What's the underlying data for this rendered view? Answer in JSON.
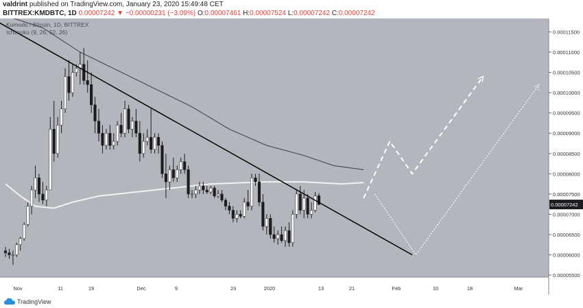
{
  "header": {
    "author": "valdrint",
    "published": "published on TradingView.com, January 23, 2020 15:49:48 CET",
    "symbol": "BITTREX:KMDBTC, 1D",
    "last": "0.00007242",
    "change": "▼ −0.00000231 (−3.09%)",
    "o_label": "O:",
    "o": "0.00007461",
    "h_label": "H:",
    "h": "0.00007524",
    "l_label": "L:",
    "l": "0.00007242",
    "c_label": "C:",
    "c": "0.00007242"
  },
  "legend": {
    "title": "Komodo / Bitcoin, 1D, BITTREX",
    "indicator": "Ichimoku (9, 26, 52, 26)"
  },
  "footer": {
    "brand": "TradingView"
  },
  "colors": {
    "plot_bg": "#b4b6bd",
    "bull": "#ffffff",
    "bear": "#1c1c20",
    "price_badge": "#1c1c20",
    "trend_line": "#000000",
    "ma_dark": "#3a3a40",
    "ma_light": "#f2f2f2",
    "projection": "#ffffff"
  },
  "chart_data": {
    "type": "candlestick",
    "x_ticks": [
      "Nov",
      "11",
      "19",
      "Dec",
      "9",
      "23",
      "2020",
      "13",
      "21",
      "Feb",
      "10",
      "18",
      "Mar"
    ],
    "y_ticks": [
      "0.00011500",
      "0.00011000",
      "0.00010500",
      "0.00010000",
      "0.00009500",
      "0.00009000",
      "0.00008500",
      "0.00008000",
      "0.00007500",
      "0.00007000",
      "0.00006500",
      "0.00006000",
      "0.00005500"
    ],
    "ylim": [
      5.45e-05,
      0.0001183
    ],
    "current_price": "0.00007242",
    "candles": [
      {
        "o": 6.1,
        "h": 6.2,
        "l": 5.95,
        "c": 6.05
      },
      {
        "o": 6.05,
        "h": 6.15,
        "l": 5.9,
        "c": 6.0
      },
      {
        "o": 6.0,
        "h": 6.1,
        "l": 5.75,
        "c": 6.0
      },
      {
        "o": 6.0,
        "h": 6.3,
        "l": 5.95,
        "c": 6.25
      },
      {
        "o": 6.25,
        "h": 6.45,
        "l": 6.1,
        "c": 6.4
      },
      {
        "o": 6.4,
        "h": 6.8,
        "l": 6.35,
        "c": 6.75
      },
      {
        "o": 6.75,
        "h": 7.3,
        "l": 6.7,
        "c": 7.2
      },
      {
        "o": 7.2,
        "h": 7.7,
        "l": 7.0,
        "c": 7.6
      },
      {
        "o": 7.6,
        "h": 8.2,
        "l": 7.4,
        "c": 7.9
      },
      {
        "o": 7.9,
        "h": 8.0,
        "l": 7.3,
        "c": 7.5
      },
      {
        "o": 7.5,
        "h": 7.8,
        "l": 7.25,
        "c": 7.35
      },
      {
        "o": 7.35,
        "h": 7.7,
        "l": 7.2,
        "c": 7.6
      },
      {
        "o": 7.6,
        "h": 9.4,
        "l": 7.6,
        "c": 9.1
      },
      {
        "o": 9.1,
        "h": 9.8,
        "l": 8.3,
        "c": 8.5
      },
      {
        "o": 8.5,
        "h": 9.4,
        "l": 8.4,
        "c": 9.2
      },
      {
        "o": 9.2,
        "h": 9.8,
        "l": 9.0,
        "c": 9.6
      },
      {
        "o": 9.6,
        "h": 10.6,
        "l": 9.5,
        "c": 10.4
      },
      {
        "o": 10.4,
        "h": 10.8,
        "l": 9.8,
        "c": 10.0
      },
      {
        "o": 10.0,
        "h": 10.7,
        "l": 9.9,
        "c": 10.5
      },
      {
        "o": 10.5,
        "h": 10.7,
        "l": 10.4,
        "c": 10.6
      },
      {
        "o": 10.6,
        "h": 11.0,
        "l": 10.2,
        "c": 10.7
      },
      {
        "o": 10.7,
        "h": 11.1,
        "l": 10.2,
        "c": 10.3
      },
      {
        "o": 10.3,
        "h": 10.8,
        "l": 10.0,
        "c": 10.2
      },
      {
        "o": 10.2,
        "h": 10.5,
        "l": 9.5,
        "c": 9.7
      },
      {
        "o": 9.7,
        "h": 9.9,
        "l": 9.0,
        "c": 9.3
      },
      {
        "o": 9.3,
        "h": 9.6,
        "l": 8.8,
        "c": 9.0
      },
      {
        "o": 9.0,
        "h": 9.2,
        "l": 8.5,
        "c": 8.7
      },
      {
        "o": 8.7,
        "h": 9.1,
        "l": 8.6,
        "c": 9.0
      },
      {
        "o": 9.0,
        "h": 9.2,
        "l": 8.6,
        "c": 8.7
      },
      {
        "o": 8.7,
        "h": 9.0,
        "l": 8.6,
        "c": 8.8
      },
      {
        "o": 8.8,
        "h": 9.3,
        "l": 8.7,
        "c": 9.2
      },
      {
        "o": 9.2,
        "h": 9.5,
        "l": 8.9,
        "c": 9.0
      },
      {
        "o": 9.0,
        "h": 9.8,
        "l": 8.9,
        "c": 9.6
      },
      {
        "o": 9.6,
        "h": 9.7,
        "l": 9.0,
        "c": 9.1
      },
      {
        "o": 9.1,
        "h": 9.4,
        "l": 8.9,
        "c": 9.3
      },
      {
        "o": 9.3,
        "h": 9.6,
        "l": 8.9,
        "c": 9.0
      },
      {
        "o": 9.0,
        "h": 9.3,
        "l": 8.3,
        "c": 8.5
      },
      {
        "o": 8.5,
        "h": 9.0,
        "l": 8.4,
        "c": 8.8
      },
      {
        "o": 8.8,
        "h": 9.1,
        "l": 8.7,
        "c": 8.9
      },
      {
        "o": 8.9,
        "h": 9.6,
        "l": 8.5,
        "c": 8.6
      },
      {
        "o": 8.6,
        "h": 9.0,
        "l": 8.5,
        "c": 8.9
      },
      {
        "o": 8.9,
        "h": 9.0,
        "l": 8.5,
        "c": 8.7
      },
      {
        "o": 8.7,
        "h": 8.8,
        "l": 7.9,
        "c": 8.0
      },
      {
        "o": 8.0,
        "h": 8.5,
        "l": 7.4,
        "c": 7.8
      },
      {
        "o": 7.8,
        "h": 8.2,
        "l": 7.6,
        "c": 8.1
      },
      {
        "o": 8.1,
        "h": 8.4,
        "l": 7.8,
        "c": 7.9
      },
      {
        "o": 7.9,
        "h": 8.2,
        "l": 7.8,
        "c": 8.1
      },
      {
        "o": 8.1,
        "h": 8.4,
        "l": 8.0,
        "c": 8.3
      },
      {
        "o": 8.3,
        "h": 8.5,
        "l": 8.0,
        "c": 8.1
      },
      {
        "o": 8.1,
        "h": 8.2,
        "l": 7.4,
        "c": 7.5
      },
      {
        "o": 7.5,
        "h": 7.6,
        "l": 7.4,
        "c": 7.5
      },
      {
        "o": 7.5,
        "h": 7.7,
        "l": 7.4,
        "c": 7.6
      },
      {
        "o": 7.6,
        "h": 7.8,
        "l": 7.5,
        "c": 7.7
      },
      {
        "o": 7.7,
        "h": 7.8,
        "l": 7.5,
        "c": 7.6
      },
      {
        "o": 7.6,
        "h": 7.7,
        "l": 7.5,
        "c": 7.55
      },
      {
        "o": 7.55,
        "h": 7.7,
        "l": 7.5,
        "c": 7.65
      },
      {
        "o": 7.65,
        "h": 7.7,
        "l": 7.4,
        "c": 7.45
      },
      {
        "o": 7.45,
        "h": 7.6,
        "l": 7.4,
        "c": 7.5
      },
      {
        "o": 7.5,
        "h": 7.6,
        "l": 7.3,
        "c": 7.35
      },
      {
        "o": 7.35,
        "h": 7.4,
        "l": 7.1,
        "c": 7.2
      },
      {
        "o": 7.2,
        "h": 7.3,
        "l": 7.0,
        "c": 7.1
      },
      {
        "o": 7.1,
        "h": 7.2,
        "l": 6.8,
        "c": 6.9
      },
      {
        "o": 6.9,
        "h": 7.1,
        "l": 6.8,
        "c": 7.0
      },
      {
        "o": 7.0,
        "h": 7.1,
        "l": 6.9,
        "c": 6.95
      },
      {
        "o": 6.95,
        "h": 7.4,
        "l": 6.9,
        "c": 7.3
      },
      {
        "o": 7.3,
        "h": 7.6,
        "l": 7.1,
        "c": 7.2
      },
      {
        "o": 7.2,
        "h": 8.0,
        "l": 7.1,
        "c": 7.9
      },
      {
        "o": 7.9,
        "h": 8.0,
        "l": 7.7,
        "c": 7.8
      },
      {
        "o": 7.8,
        "h": 8.0,
        "l": 7.2,
        "c": 7.3
      },
      {
        "o": 7.3,
        "h": 7.5,
        "l": 6.6,
        "c": 6.7
      },
      {
        "o": 6.7,
        "h": 7.0,
        "l": 6.5,
        "c": 6.9
      },
      {
        "o": 6.9,
        "h": 7.0,
        "l": 6.4,
        "c": 6.5
      },
      {
        "o": 6.5,
        "h": 6.7,
        "l": 6.3,
        "c": 6.4
      },
      {
        "o": 6.4,
        "h": 6.6,
        "l": 6.25,
        "c": 6.5
      },
      {
        "o": 6.5,
        "h": 6.7,
        "l": 6.3,
        "c": 6.35
      },
      {
        "o": 6.35,
        "h": 6.7,
        "l": 6.2,
        "c": 6.6
      },
      {
        "o": 6.6,
        "h": 6.8,
        "l": 6.2,
        "c": 6.3
      },
      {
        "o": 6.3,
        "h": 7.1,
        "l": 6.2,
        "c": 7.0
      },
      {
        "o": 7.0,
        "h": 7.6,
        "l": 6.9,
        "c": 7.5
      },
      {
        "o": 7.5,
        "h": 7.7,
        "l": 7.0,
        "c": 7.1
      },
      {
        "o": 7.1,
        "h": 7.6,
        "l": 6.9,
        "c": 7.4
      },
      {
        "o": 7.4,
        "h": 7.5,
        "l": 6.9,
        "c": 7.0
      },
      {
        "o": 7.0,
        "h": 7.3,
        "l": 6.9,
        "c": 7.1
      },
      {
        "o": 7.1,
        "h": 7.55,
        "l": 7.05,
        "c": 7.45
      },
      {
        "o": 7.46,
        "h": 7.52,
        "l": 7.24,
        "c": 7.24
      }
    ],
    "ma_slow": [
      [
        0,
        11.9
      ],
      [
        10,
        11.6
      ],
      [
        20,
        11.0
      ],
      [
        30,
        10.55
      ],
      [
        40,
        10.1
      ],
      [
        50,
        9.65
      ],
      [
        60,
        9.1
      ],
      [
        70,
        8.7
      ],
      [
        80,
        8.45
      ],
      [
        88,
        8.2
      ],
      [
        96,
        8.1
      ]
    ],
    "ma_200": [
      [
        0,
        7.75
      ],
      [
        4,
        7.45
      ],
      [
        8,
        7.2
      ],
      [
        13,
        7.15
      ],
      [
        18,
        7.3
      ],
      [
        25,
        7.45
      ],
      [
        35,
        7.55
      ],
      [
        45,
        7.65
      ],
      [
        55,
        7.75
      ],
      [
        70,
        7.8
      ],
      [
        80,
        7.8
      ],
      [
        90,
        7.75
      ],
      [
        96,
        7.78
      ]
    ],
    "trend_line": [
      [
        -5,
        11.9
      ],
      [
        109,
        6.0
      ]
    ],
    "projection_dashed": [
      [
        96,
        7.4
      ],
      [
        103,
        8.8
      ],
      [
        109,
        8.0
      ],
      [
        128,
        10.4
      ]
    ],
    "projection_dotted": [
      [
        99,
        7.5
      ],
      [
        110,
        6.0
      ],
      [
        143,
        10.2
      ]
    ]
  }
}
